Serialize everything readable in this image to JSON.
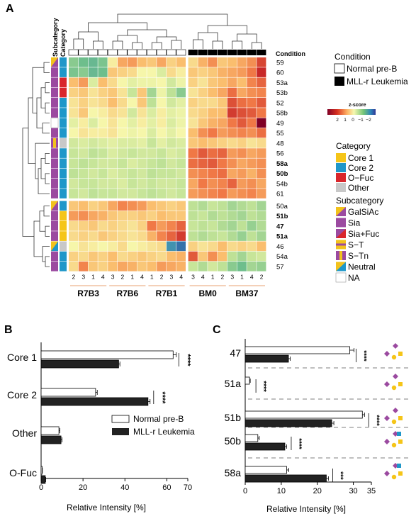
{
  "colors": {
    "core1": "#f5c518",
    "core2": "#1f97c9",
    "ofuc": "#d9262b",
    "other": "#c8c8c8",
    "gal_sia": "#f2c21c",
    "sia": "#9b4aa0",
    "na": "#ffffff",
    "normal": "#ffffff",
    "mll": "#222222"
  },
  "panels": {
    "a": "A",
    "b": "B",
    "c": "C"
  },
  "chart_data": [
    {
      "type": "heatmap",
      "panel": "A",
      "top_labels": [
        "Subcategory",
        "Category"
      ],
      "condition_label": "Condition",
      "columns": [
        "2",
        "3",
        "1",
        "4",
        "3",
        "2",
        "1",
        "4",
        "1",
        "2",
        "3",
        "4",
        "3",
        "4",
        "1",
        "2",
        "3",
        "1",
        "4",
        "2"
      ],
      "column_groups": [
        {
          "name": "R7B3",
          "count": 4,
          "condition": "Normal pre-B"
        },
        {
          "name": "R7B6",
          "count": 4,
          "condition": "Normal pre-B"
        },
        {
          "name": "R7B1",
          "count": 4,
          "condition": "Normal pre-B"
        },
        {
          "name": "BM0",
          "count": 4,
          "condition": "MLL-r Leukemia"
        },
        {
          "name": "BM37",
          "count": 4,
          "condition": "MLL-r Leukemia"
        }
      ],
      "rows": [
        "59",
        "60",
        "53a",
        "53b",
        "52",
        "58b",
        "49",
        "55",
        "48",
        "56",
        "58a",
        "50b",
        "54b",
        "61",
        "50a",
        "51b",
        "47",
        "51a",
        "46",
        "54a",
        "57"
      ],
      "bold_rows": [
        "58a",
        "50b",
        "51b",
        "47",
        "51a"
      ],
      "row_category": [
        "core2",
        "core2",
        "ofuc",
        "ofuc",
        "core2",
        "core2",
        "core2",
        "core2",
        "other",
        "core2",
        "core2",
        "core2",
        "core2",
        "core2",
        "core2",
        "core1",
        "core1",
        "core1",
        "other",
        "core2",
        "core2"
      ],
      "row_subcategory": [
        "gal",
        "sia",
        "sia",
        "sia",
        "sia",
        "sia",
        "na",
        "sia",
        "st",
        "sia",
        "sia",
        "sia",
        "sia",
        "sia",
        "gal",
        "sia",
        "sia",
        "sia",
        "neutral",
        "sia",
        "sia"
      ],
      "z": [
        [
          -1.0,
          -1.2,
          -1.3,
          -1.1,
          0.1,
          0.8,
          0.9,
          0.6,
          0.5,
          0.8,
          0.4,
          0.6,
          0.3,
          0.7,
          1.0,
          0.5,
          0.6,
          0.8,
          1.0,
          1.7
        ],
        [
          -1.1,
          -1.0,
          -1.3,
          -1.2,
          0.5,
          0.4,
          0.3,
          0.0,
          0.0,
          -0.3,
          0.3,
          0.1,
          0.5,
          0.4,
          0.5,
          0.7,
          0.8,
          0.9,
          1.2,
          2.0
        ],
        [
          0.6,
          0.9,
          -0.3,
          0.6,
          0.3,
          0.0,
          -0.2,
          -0.1,
          -0.1,
          0.0,
          -0.4,
          -0.1,
          0.4,
          0.2,
          0.5,
          0.6,
          0.8,
          0.6,
          1.1,
          1.4
        ],
        [
          0.4,
          0.5,
          0.2,
          0.4,
          0.5,
          0.2,
          -0.5,
          0.5,
          -0.8,
          -0.1,
          -0.6,
          -1.0,
          0.2,
          0.4,
          0.6,
          0.8,
          1.3,
          0.8,
          1.0,
          1.1
        ],
        [
          0.2,
          0.4,
          0.2,
          0.3,
          0.6,
          0.3,
          0.0,
          0.5,
          -0.6,
          0.0,
          -0.4,
          -0.2,
          0.4,
          0.3,
          0.3,
          0.5,
          1.6,
          1.3,
          1.2,
          1.5
        ],
        [
          0.2,
          0.5,
          0.0,
          0.1,
          0.3,
          0.2,
          -0.4,
          0.2,
          -0.3,
          0.1,
          -0.2,
          -0.1,
          0.3,
          0.4,
          0.6,
          0.6,
          1.8,
          1.6,
          1.5,
          1.2
        ],
        [
          -0.2,
          0.1,
          -0.3,
          0.0,
          0.2,
          0.0,
          -0.2,
          0.1,
          -0.2,
          0.1,
          -0.3,
          -0.1,
          0.2,
          0.5,
          0.7,
          0.8,
          1.2,
          1.5,
          1.2,
          2.6
        ],
        [
          0.0,
          0.2,
          0.1,
          0.1,
          0.2,
          0.0,
          -0.1,
          0.0,
          -0.3,
          0.0,
          -0.2,
          0.0,
          0.6,
          1.0,
          1.2,
          0.9,
          1.0,
          1.1,
          1.0,
          1.3
        ],
        [
          -0.4,
          -0.3,
          -0.4,
          -0.3,
          -0.2,
          -0.3,
          -0.3,
          -0.2,
          -0.5,
          -0.2,
          -0.4,
          -0.3,
          0.5,
          0.6,
          0.5,
          0.4,
          0.3,
          0.4,
          0.2,
          0.3
        ],
        [
          -0.5,
          -0.4,
          -0.6,
          -0.5,
          -0.3,
          -0.4,
          -0.5,
          -0.4,
          -0.4,
          -0.5,
          -0.3,
          -0.4,
          1.2,
          1.5,
          1.3,
          1.4,
          0.9,
          1.0,
          0.8,
          0.9
        ],
        [
          -0.5,
          -0.6,
          -0.5,
          -0.4,
          -0.4,
          -0.5,
          -0.3,
          -0.4,
          -0.5,
          -0.6,
          -0.4,
          -0.5,
          1.3,
          1.4,
          1.5,
          1.2,
          1.0,
          0.8,
          0.9,
          1.0
        ],
        [
          -0.6,
          -0.5,
          -0.4,
          -0.5,
          -0.3,
          -0.4,
          -0.5,
          -0.4,
          -0.6,
          -0.5,
          -0.5,
          -0.4,
          1.0,
          1.1,
          1.2,
          1.3,
          0.8,
          0.9,
          0.7,
          1.0
        ],
        [
          -0.4,
          -0.5,
          -0.5,
          -0.4,
          -0.4,
          -0.3,
          -0.5,
          -0.4,
          -0.5,
          -0.4,
          -0.4,
          -0.5,
          0.8,
          1.2,
          1.0,
          1.1,
          1.4,
          0.9,
          1.0,
          0.8
        ],
        [
          -0.5,
          -0.4,
          -0.6,
          -0.5,
          -0.5,
          -0.4,
          -0.4,
          -0.5,
          -0.6,
          -0.5,
          -0.4,
          -0.5,
          0.9,
          1.0,
          1.1,
          1.2,
          0.9,
          1.0,
          1.1,
          0.9
        ],
        [
          0.5,
          0.6,
          0.4,
          0.5,
          0.8,
          1.1,
          1.0,
          0.9,
          0.6,
          0.5,
          0.4,
          0.5,
          -0.6,
          -0.7,
          -0.5,
          -0.6,
          -0.8,
          -0.7,
          -0.6,
          -0.8
        ],
        [
          0.9,
          1.0,
          0.8,
          0.7,
          0.5,
          0.4,
          0.4,
          0.5,
          0.4,
          0.6,
          0.5,
          0.5,
          -0.6,
          -0.5,
          -0.7,
          -0.6,
          -0.7,
          -0.8,
          -0.6,
          -0.7
        ],
        [
          0.3,
          0.4,
          0.5,
          0.3,
          0.4,
          0.3,
          0.2,
          0.4,
          1.2,
          0.9,
          1.1,
          1.4,
          -0.5,
          -0.6,
          -0.5,
          -0.7,
          -0.8,
          -0.6,
          -0.9,
          -0.7
        ],
        [
          0.3,
          0.4,
          0.3,
          0.5,
          0.4,
          0.3,
          0.2,
          0.3,
          0.7,
          1.1,
          1.4,
          1.8,
          -0.6,
          -0.7,
          -0.6,
          -0.5,
          -0.7,
          -0.9,
          -0.6,
          -0.8
        ],
        [
          0.0,
          0.2,
          0.1,
          0.0,
          0.1,
          0.3,
          0.0,
          0.1,
          0.2,
          0.3,
          -1.9,
          -2.2,
          0.4,
          0.2,
          0.3,
          0.6,
          0.3,
          0.4,
          0.3,
          0.6
        ],
        [
          0.4,
          0.3,
          0.5,
          0.4,
          0.6,
          0.3,
          0.4,
          0.5,
          0.4,
          0.3,
          0.6,
          0.7,
          1.5,
          0.5,
          1.0,
          0.6,
          -0.6,
          -0.8,
          -0.5,
          -0.4
        ],
        [
          0.3,
          1.1,
          0.5,
          0.4,
          0.6,
          0.8,
          0.7,
          0.5,
          0.6,
          0.9,
          0.8,
          0.7,
          -0.5,
          -0.7,
          -0.4,
          -0.6,
          -1.0,
          -1.2,
          -0.8,
          -0.9
        ]
      ],
      "colorbar": {
        "title": "z-score",
        "ticks": [
          "2",
          "1",
          "0",
          "−1",
          "−2"
        ]
      },
      "legend": {
        "condition": {
          "title": "Condition",
          "items": [
            "Normal pre-B",
            "MLL-r Leukemia"
          ]
        },
        "category": {
          "title": "Category",
          "items": [
            "Core 1",
            "Core 2",
            "O−Fuc",
            "Other"
          ]
        },
        "subcategory": {
          "title": "Subcategory",
          "items": [
            "GalSiAc",
            "Sia",
            "Sia+Fuc",
            "S−T",
            "S−Tn",
            "Neutral",
            "NA"
          ]
        }
      }
    },
    {
      "type": "bar",
      "panel": "B",
      "orientation": "horizontal",
      "categories": [
        "Core 1",
        "Core 2",
        "Other",
        "O-Fuc"
      ],
      "series": [
        {
          "name": "Normal pre-B",
          "values": [
            63,
            26,
            8.5,
            0.5
          ],
          "errors": [
            1.5,
            0.8,
            0.4,
            0.1
          ]
        },
        {
          "name": "MLL-r Leukemia",
          "values": [
            37,
            51,
            9.5,
            2
          ],
          "errors": [
            0.6,
            1.0,
            0.5,
            0.2
          ]
        }
      ],
      "significance": [
        "****",
        "****",
        "",
        ""
      ],
      "xlabel": "Relative Intensity [%]",
      "xlim": [
        0,
        70
      ],
      "xticks": [
        "0",
        "20",
        "40",
        "60",
        "70"
      ]
    },
    {
      "type": "bar",
      "panel": "C",
      "orientation": "horizontal",
      "categories": [
        "47",
        "51a",
        "51b",
        "50b",
        "58a"
      ],
      "series": [
        {
          "name": "Normal pre-B",
          "values": [
            29,
            1.2,
            32.5,
            3.5,
            11.5
          ],
          "errors": [
            1.2,
            0.2,
            0.6,
            0.4,
            0.6
          ]
        },
        {
          "name": "MLL-r Leukemia",
          "values": [
            12,
            0,
            24,
            11,
            22.5
          ],
          "errors": [
            0.5,
            0,
            0.6,
            0.5,
            0.6
          ]
        }
      ],
      "significance": [
        "****",
        "****",
        "****",
        "****",
        "***"
      ],
      "xlabel": "Relative Intensity [%]",
      "xlim": [
        0,
        35
      ],
      "xticks": [
        "0",
        "10",
        "20",
        "30",
        "35"
      ]
    }
  ]
}
